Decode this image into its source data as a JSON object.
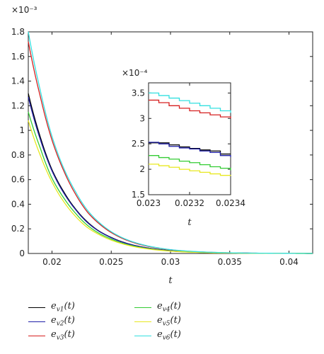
{
  "chart_data": [
    {
      "type": "line",
      "title": "",
      "xlabel": "t",
      "ylabel": "",
      "y_multiplier_label": "×10⁻³",
      "xlim": [
        0.018,
        0.042
      ],
      "ylim": [
        0,
        1.8
      ],
      "xticks": [
        "0.02",
        "0.025",
        "0.03",
        "0.035",
        "0.04"
      ],
      "yticks": [
        "0",
        "0.2",
        "0.4",
        "0.6",
        "0.8",
        "1",
        "1.2",
        "1.4",
        "1.6",
        "1.8"
      ],
      "grid": false,
      "legend": "below",
      "series": [
        {
          "name": "e_v1(t)",
          "color": "#000000",
          "x": [
            0.018,
            0.019,
            0.02,
            0.021,
            0.022,
            0.023,
            0.024,
            0.025,
            0.026,
            0.027,
            0.028,
            0.029,
            0.03,
            0.032,
            0.034,
            0.036,
            0.038,
            0.04,
            0.042
          ],
          "y": [
            1.3,
            0.95,
            0.68,
            0.5,
            0.36,
            0.255,
            0.18,
            0.13,
            0.092,
            0.065,
            0.046,
            0.033,
            0.023,
            0.012,
            0.006,
            0.003,
            0.0015,
            0.0008,
            0.0004
          ]
        },
        {
          "name": "e_v2(t)",
          "color": "#1f1fa8",
          "x": [
            0.018,
            0.019,
            0.02,
            0.021,
            0.022,
            0.023,
            0.024,
            0.025,
            0.026,
            0.027,
            0.028,
            0.029,
            0.03,
            0.032,
            0.034,
            0.036,
            0.038,
            0.04,
            0.042
          ],
          "y": [
            1.27,
            0.93,
            0.67,
            0.49,
            0.355,
            0.25,
            0.178,
            0.128,
            0.09,
            0.064,
            0.045,
            0.032,
            0.022,
            0.011,
            0.0055,
            0.0028,
            0.0014,
            0.0007,
            0.0004
          ]
        },
        {
          "name": "e_v3(t)",
          "color": "#d62020",
          "x": [
            0.018,
            0.019,
            0.02,
            0.021,
            0.022,
            0.023,
            0.024,
            0.025,
            0.026,
            0.027,
            0.028,
            0.029,
            0.03,
            0.032,
            0.034,
            0.036,
            0.038,
            0.04,
            0.042
          ],
          "y": [
            1.72,
            1.28,
            0.92,
            0.67,
            0.48,
            0.335,
            0.24,
            0.17,
            0.12,
            0.085,
            0.06,
            0.043,
            0.03,
            0.015,
            0.0075,
            0.0037,
            0.0019,
            0.0009,
            0.0005
          ]
        },
        {
          "name": "e_v4(t)",
          "color": "#33cc33",
          "x": [
            0.018,
            0.019,
            0.02,
            0.021,
            0.022,
            0.023,
            0.024,
            0.025,
            0.026,
            0.027,
            0.028,
            0.029,
            0.03,
            0.032,
            0.034,
            0.036,
            0.038,
            0.04,
            0.042
          ],
          "y": [
            1.15,
            0.86,
            0.61,
            0.45,
            0.325,
            0.228,
            0.162,
            0.117,
            0.082,
            0.058,
            0.041,
            0.029,
            0.02,
            0.01,
            0.005,
            0.0025,
            0.0013,
            0.0006,
            0.0003
          ]
        },
        {
          "name": "e_v5(t)",
          "color": "#e8e820",
          "x": [
            0.018,
            0.019,
            0.02,
            0.021,
            0.022,
            0.023,
            0.024,
            0.025,
            0.026,
            0.027,
            0.028,
            0.029,
            0.03,
            0.032,
            0.034,
            0.036,
            0.038,
            0.04,
            0.042
          ],
          "y": [
            1.08,
            0.8,
            0.58,
            0.42,
            0.3,
            0.21,
            0.152,
            0.108,
            0.077,
            0.054,
            0.038,
            0.027,
            0.019,
            0.0095,
            0.0048,
            0.0024,
            0.0012,
            0.0006,
            0.0003
          ]
        },
        {
          "name": "e_v6(t)",
          "color": "#33e0e0",
          "x": [
            0.018,
            0.019,
            0.02,
            0.021,
            0.022,
            0.023,
            0.024,
            0.025,
            0.026,
            0.027,
            0.028,
            0.029,
            0.03,
            0.032,
            0.034,
            0.036,
            0.038,
            0.04,
            0.042
          ],
          "y": [
            1.8,
            1.33,
            0.95,
            0.69,
            0.5,
            0.35,
            0.25,
            0.177,
            0.125,
            0.089,
            0.063,
            0.045,
            0.031,
            0.016,
            0.008,
            0.004,
            0.002,
            0.001,
            0.0005
          ]
        }
      ]
    },
    {
      "type": "line",
      "title": "",
      "xlabel": "t",
      "ylabel": "",
      "y_multiplier_label": "×10⁻⁴",
      "xlim": [
        0.023,
        0.0234
      ],
      "ylim": [
        1.5,
        3.7
      ],
      "xticks": [
        "0.023",
        "0.0232",
        "0.0234"
      ],
      "yticks": [
        "1.5",
        "2",
        "2.5",
        "3",
        "3.5"
      ],
      "grid": false,
      "step": true,
      "series": [
        {
          "name": "e_v1(t)",
          "color": "#000000",
          "x": [
            0.023,
            0.02305,
            0.0231,
            0.02315,
            0.0232,
            0.02325,
            0.0233,
            0.02335,
            0.0234
          ],
          "y": [
            2.52,
            2.52,
            2.48,
            2.44,
            2.41,
            2.38,
            2.36,
            2.3,
            2.3
          ]
        },
        {
          "name": "e_v2(t)",
          "color": "#1f1fa8",
          "x": [
            0.023,
            0.02305,
            0.0231,
            0.02315,
            0.0232,
            0.02325,
            0.0233,
            0.02335,
            0.0234
          ],
          "y": [
            2.53,
            2.5,
            2.45,
            2.42,
            2.4,
            2.36,
            2.33,
            2.27,
            2.24
          ]
        },
        {
          "name": "e_v3(t)",
          "color": "#d62020",
          "x": [
            0.023,
            0.02305,
            0.0231,
            0.02315,
            0.0232,
            0.02325,
            0.0233,
            0.02335,
            0.0234
          ],
          "y": [
            3.36,
            3.31,
            3.25,
            3.2,
            3.15,
            3.11,
            3.07,
            3.03,
            3.0
          ]
        },
        {
          "name": "e_v4(t)",
          "color": "#33cc33",
          "x": [
            0.023,
            0.02305,
            0.0231,
            0.02315,
            0.0232,
            0.02325,
            0.0233,
            0.02335,
            0.0234
          ],
          "y": [
            2.27,
            2.23,
            2.2,
            2.16,
            2.13,
            2.09,
            2.05,
            2.02,
            1.98
          ]
        },
        {
          "name": "e_v5(t)",
          "color": "#e8e820",
          "x": [
            0.023,
            0.02305,
            0.0231,
            0.02315,
            0.0232,
            0.02325,
            0.0233,
            0.02335,
            0.0234
          ],
          "y": [
            2.1,
            2.07,
            2.04,
            2.0,
            1.97,
            1.94,
            1.91,
            1.88,
            1.87
          ]
        },
        {
          "name": "e_v6(t)",
          "color": "#33e0e0",
          "x": [
            0.023,
            0.02305,
            0.0231,
            0.02315,
            0.0232,
            0.02325,
            0.0233,
            0.02335,
            0.0234
          ],
          "y": [
            3.5,
            3.45,
            3.4,
            3.35,
            3.3,
            3.25,
            3.2,
            3.15,
            3.11
          ]
        }
      ]
    }
  ],
  "legend": {
    "items": [
      {
        "label": "e_{v1}(t)",
        "main": "e",
        "sub": "v1",
        "tail": "(t)",
        "color": "#000000"
      },
      {
        "label": "e_{v2}(t)",
        "main": "e",
        "sub": "v2",
        "tail": "(t)",
        "color": "#1f1fa8"
      },
      {
        "label": "e_{v3}(t)",
        "main": "e",
        "sub": "v3",
        "tail": "(t)",
        "color": "#d62020"
      },
      {
        "label": "e_{v4}(t)",
        "main": "e",
        "sub": "v4",
        "tail": "(t)",
        "color": "#33cc33"
      },
      {
        "label": "e_{v5}(t)",
        "main": "e",
        "sub": "v5",
        "tail": "(t)",
        "color": "#e8e820"
      },
      {
        "label": "e_{v6}(t)",
        "main": "e",
        "sub": "v6",
        "tail": "(t)",
        "color": "#33e0e0"
      }
    ]
  }
}
